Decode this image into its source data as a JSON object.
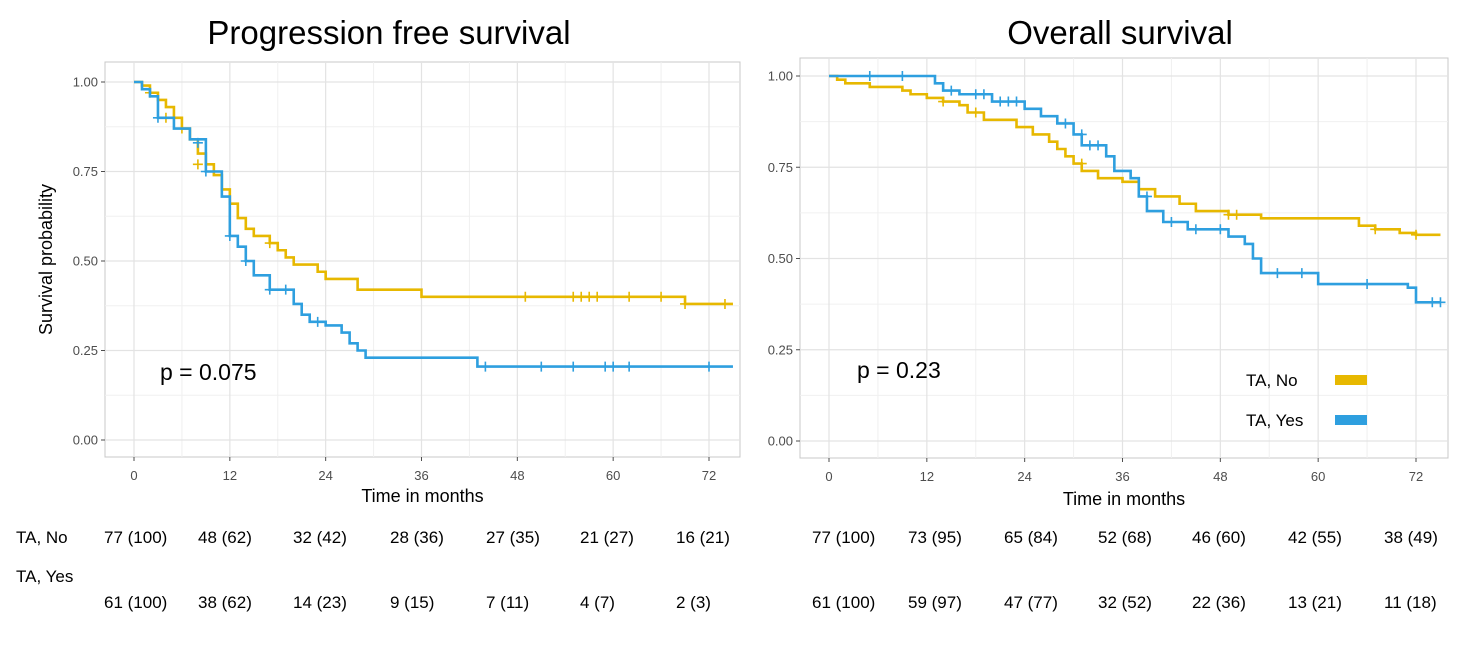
{
  "chart_data": [
    {
      "type": "line",
      "title": "Progression free survival",
      "xlabel": "Time in months",
      "ylabel": "Survival probability",
      "xlim": [
        -2.5,
        75
      ],
      "ylim": [
        -0.035,
        1.04
      ],
      "x_ticks": [
        "0",
        "12",
        "24",
        "36",
        "48",
        "60",
        "72"
      ],
      "y_ticks": [
        "0.00",
        "0.25",
        "0.50",
        "0.75",
        "1.00"
      ],
      "annotation": "p = 0.075",
      "grid": true,
      "series": [
        {
          "name": "TA, No",
          "color": "#E7B800",
          "steps": [
            [
              0,
              1.0
            ],
            [
              1,
              0.99
            ],
            [
              2,
              0.97
            ],
            [
              3,
              0.95
            ],
            [
              4,
              0.93
            ],
            [
              5,
              0.9
            ],
            [
              6,
              0.87
            ],
            [
              7,
              0.84
            ],
            [
              8,
              0.8
            ],
            [
              9,
              0.77
            ],
            [
              10,
              0.74
            ],
            [
              11,
              0.7
            ],
            [
              12,
              0.66
            ],
            [
              13,
              0.62
            ],
            [
              14,
              0.59
            ],
            [
              15,
              0.57
            ],
            [
              17,
              0.55
            ],
            [
              18,
              0.53
            ],
            [
              19,
              0.51
            ],
            [
              20,
              0.49
            ],
            [
              23,
              0.47
            ],
            [
              24,
              0.45
            ],
            [
              28,
              0.42
            ],
            [
              36,
              0.4
            ],
            [
              69,
              0.38
            ],
            [
              75,
              0.38
            ]
          ],
          "censor": [
            [
              2,
              0.97
            ],
            [
              4,
              0.9
            ],
            [
              6,
              0.87
            ],
            [
              8,
              0.77
            ],
            [
              17,
              0.55
            ],
            [
              49,
              0.4
            ],
            [
              55,
              0.4
            ],
            [
              56,
              0.4
            ],
            [
              57,
              0.4
            ],
            [
              58,
              0.4
            ],
            [
              62,
              0.4
            ],
            [
              66,
              0.4
            ],
            [
              69,
              0.38
            ],
            [
              74,
              0.38
            ]
          ]
        },
        {
          "name": "TA, Yes",
          "color": "#2E9FDF",
          "steps": [
            [
              0,
              1.0
            ],
            [
              1,
              0.98
            ],
            [
              2,
              0.96
            ],
            [
              3,
              0.9
            ],
            [
              5,
              0.87
            ],
            [
              7,
              0.84
            ],
            [
              9,
              0.75
            ],
            [
              11,
              0.68
            ],
            [
              12,
              0.57
            ],
            [
              13,
              0.54
            ],
            [
              14,
              0.5
            ],
            [
              15,
              0.46
            ],
            [
              17,
              0.42
            ],
            [
              20,
              0.38
            ],
            [
              21,
              0.35
            ],
            [
              22,
              0.33
            ],
            [
              24,
              0.32
            ],
            [
              26,
              0.3
            ],
            [
              27,
              0.27
            ],
            [
              28,
              0.25
            ],
            [
              29,
              0.23
            ],
            [
              43,
              0.205
            ],
            [
              75,
              0.205
            ]
          ],
          "censor": [
            [
              3,
              0.9
            ],
            [
              8,
              0.83
            ],
            [
              9,
              0.75
            ],
            [
              12,
              0.57
            ],
            [
              14,
              0.5
            ],
            [
              17,
              0.42
            ],
            [
              19,
              0.42
            ],
            [
              23,
              0.33
            ],
            [
              44,
              0.205
            ],
            [
              51,
              0.205
            ],
            [
              55,
              0.205
            ],
            [
              59,
              0.205
            ],
            [
              60,
              0.205
            ],
            [
              62,
              0.205
            ],
            [
              72,
              0.205
            ]
          ]
        }
      ]
    },
    {
      "type": "line",
      "title": "Overall survival",
      "xlabel": "Time in months",
      "ylabel": "",
      "xlim": [
        -3.5,
        75
      ],
      "ylim": [
        -0.035,
        1.04
      ],
      "x_ticks": [
        "0",
        "12",
        "24",
        "36",
        "48",
        "60",
        "72"
      ],
      "y_ticks": [
        "0.00",
        "0.25",
        "0.50",
        "0.75",
        "1.00"
      ],
      "annotation": "p = 0.23",
      "grid": true,
      "legend_position": "bottom-right",
      "series": [
        {
          "name": "TA, No",
          "color": "#E7B800",
          "steps": [
            [
              0,
              1.0
            ],
            [
              1,
              0.99
            ],
            [
              2,
              0.98
            ],
            [
              5,
              0.97
            ],
            [
              9,
              0.96
            ],
            [
              10,
              0.95
            ],
            [
              12,
              0.94
            ],
            [
              14,
              0.93
            ],
            [
              16,
              0.92
            ],
            [
              17,
              0.9
            ],
            [
              19,
              0.88
            ],
            [
              23,
              0.86
            ],
            [
              25,
              0.84
            ],
            [
              27,
              0.82
            ],
            [
              28,
              0.8
            ],
            [
              29,
              0.78
            ],
            [
              30,
              0.76
            ],
            [
              31,
              0.74
            ],
            [
              33,
              0.72
            ],
            [
              36,
              0.71
            ],
            [
              38,
              0.69
            ],
            [
              40,
              0.67
            ],
            [
              43,
              0.65
            ],
            [
              45,
              0.63
            ],
            [
              49,
              0.62
            ],
            [
              53,
              0.61
            ],
            [
              65,
              0.59
            ],
            [
              67,
              0.58
            ],
            [
              70,
              0.57
            ],
            [
              72,
              0.565
            ],
            [
              75,
              0.565
            ]
          ],
          "censor": [
            [
              14,
              0.93
            ],
            [
              18,
              0.9
            ],
            [
              31,
              0.76
            ],
            [
              49,
              0.62
            ],
            [
              50,
              0.62
            ],
            [
              67,
              0.58
            ],
            [
              72,
              0.565
            ]
          ]
        },
        {
          "name": "TA, Yes",
          "color": "#2E9FDF",
          "steps": [
            [
              0,
              1.0
            ],
            [
              13,
              0.98
            ],
            [
              14,
              0.96
            ],
            [
              16,
              0.95
            ],
            [
              20,
              0.93
            ],
            [
              24,
              0.91
            ],
            [
              26,
              0.89
            ],
            [
              28,
              0.87
            ],
            [
              30,
              0.84
            ],
            [
              31,
              0.81
            ],
            [
              34,
              0.78
            ],
            [
              35,
              0.74
            ],
            [
              37,
              0.72
            ],
            [
              38,
              0.67
            ],
            [
              39,
              0.63
            ],
            [
              41,
              0.6
            ],
            [
              44,
              0.58
            ],
            [
              49,
              0.56
            ],
            [
              51,
              0.54
            ],
            [
              52,
              0.5
            ],
            [
              53,
              0.46
            ],
            [
              60,
              0.43
            ],
            [
              71,
              0.42
            ],
            [
              72,
              0.38
            ],
            [
              75,
              0.38
            ]
          ],
          "censor": [
            [
              5,
              1.0
            ],
            [
              9,
              1.0
            ],
            [
              15,
              0.96
            ],
            [
              18,
              0.95
            ],
            [
              19,
              0.95
            ],
            [
              21,
              0.93
            ],
            [
              22,
              0.93
            ],
            [
              23,
              0.93
            ],
            [
              29,
              0.87
            ],
            [
              31,
              0.84
            ],
            [
              32,
              0.81
            ],
            [
              33,
              0.81
            ],
            [
              39,
              0.67
            ],
            [
              42,
              0.6
            ],
            [
              45,
              0.58
            ],
            [
              48,
              0.58
            ],
            [
              55,
              0.46
            ],
            [
              58,
              0.46
            ],
            [
              66,
              0.43
            ],
            [
              74,
              0.38
            ],
            [
              75,
              0.38
            ]
          ]
        }
      ]
    }
  ],
  "legend": {
    "items": [
      "TA, No",
      "TA, Yes"
    ]
  },
  "risk_table": {
    "groups": [
      "TA, No",
      "TA, Yes"
    ],
    "pfs": {
      "no": [
        "77 (100)",
        "48 (62)",
        "32 (42)",
        "28 (36)",
        "27 (35)",
        "21 (27)",
        "16 (21)"
      ],
      "yes": [
        "61 (100)",
        "38 (62)",
        "14 (23)",
        "9 (15)",
        "7 (11)",
        "4 (7)",
        "2 (3)"
      ]
    },
    "os": {
      "no": [
        "77 (100)",
        "73 (95)",
        "65 (84)",
        "52 (68)",
        "46 (60)",
        "42 (55)",
        "38 (49)"
      ],
      "yes": [
        "61 (100)",
        "59 (97)",
        "47 (77)",
        "32 (52)",
        "22 (36)",
        "13 (21)",
        "11 (18)"
      ]
    }
  }
}
